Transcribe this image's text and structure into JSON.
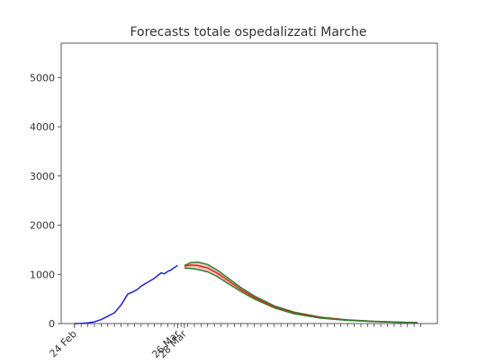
{
  "chart_data": {
    "type": "line",
    "title": "Forecasts totale ospedalizzati Marche",
    "xlabel": "",
    "ylabel": "",
    "xlim": [
      "2020-02-20",
      "2020-06-12"
    ],
    "ylim": [
      0,
      5700
    ],
    "yticks": [
      0,
      1000,
      2000,
      3000,
      4000,
      5000
    ],
    "xticks": [
      {
        "label": "24 Feb",
        "date": "2020-02-24"
      },
      {
        "label": "26 Mar",
        "date": "2020-03-26"
      },
      {
        "label": "28 Mar",
        "date": "2020-03-28"
      }
    ],
    "minor_xticks": {
      "start": "2020-02-24",
      "end": "2020-06-08",
      "every_days": 2
    },
    "legend": "none",
    "grid": false,
    "series": [
      {
        "role": "observed",
        "color": "#1f1fdd",
        "x": [
          "2020-02-24",
          "2020-02-26",
          "2020-02-28",
          "2020-03-01",
          "2020-03-03",
          "2020-03-05",
          "2020-03-07",
          "2020-03-09",
          "2020-03-11",
          "2020-03-13",
          "2020-03-14",
          "2020-03-15",
          "2020-03-16",
          "2020-03-17",
          "2020-03-19",
          "2020-03-21",
          "2020-03-22",
          "2020-03-23",
          "2020-03-24",
          "2020-03-25",
          "2020-03-26"
        ],
        "y": [
          0,
          5,
          15,
          35,
          80,
          150,
          220,
          380,
          600,
          660,
          700,
          760,
          800,
          840,
          920,
          1030,
          1010,
          1060,
          1090,
          1140,
          1180
        ]
      },
      {
        "role": "forecast-upper",
        "color": "#2e7d2e",
        "x": [
          "2020-03-28",
          "2020-03-30",
          "2020-04-01",
          "2020-04-04",
          "2020-04-07",
          "2020-04-10",
          "2020-04-14",
          "2020-04-18",
          "2020-04-24",
          "2020-04-30",
          "2020-05-08",
          "2020-05-16",
          "2020-05-24",
          "2020-06-01",
          "2020-06-06"
        ],
        "y": [
          1180,
          1240,
          1250,
          1200,
          1080,
          930,
          730,
          560,
          360,
          230,
          130,
          75,
          45,
          28,
          20
        ]
      },
      {
        "role": "forecast-central",
        "color": "#e8201c",
        "x": [
          "2020-03-28",
          "2020-03-30",
          "2020-04-01",
          "2020-04-04",
          "2020-04-07",
          "2020-04-10",
          "2020-04-14",
          "2020-04-18",
          "2020-04-24",
          "2020-04-30",
          "2020-05-08",
          "2020-05-16",
          "2020-05-24",
          "2020-06-01",
          "2020-06-06"
        ],
        "y": [
          1170,
          1190,
          1180,
          1130,
          1020,
          880,
          690,
          530,
          340,
          215,
          120,
          70,
          42,
          26,
          19
        ]
      },
      {
        "role": "forecast-lower",
        "color": "#2e7d2e",
        "x": [
          "2020-03-28",
          "2020-03-30",
          "2020-04-01",
          "2020-04-04",
          "2020-04-07",
          "2020-04-10",
          "2020-04-14",
          "2020-04-18",
          "2020-04-24",
          "2020-04-30",
          "2020-05-08",
          "2020-05-16",
          "2020-05-24",
          "2020-06-01",
          "2020-06-06"
        ],
        "y": [
          1130,
          1120,
          1100,
          1050,
          950,
          820,
          650,
          500,
          320,
          200,
          110,
          65,
          40,
          25,
          18
        ]
      }
    ],
    "band": {
      "upper": "forecast-upper",
      "lower": "forecast-lower",
      "color": "#f4c8c0"
    }
  }
}
